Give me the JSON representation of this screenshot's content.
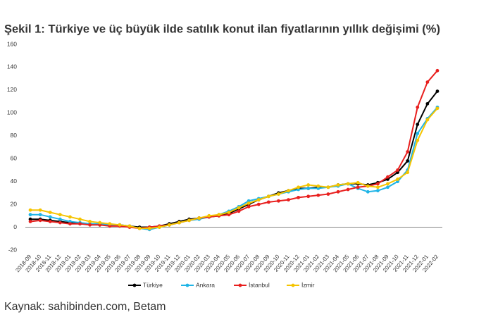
{
  "chart_data": {
    "type": "line",
    "title": "Şekil 1: Türkiye ve üç büyük ilde satılık konut ilan fiyatlarının yıllık değişimi (%)",
    "categories": [
      "2018-09",
      "2018-10",
      "2018-11",
      "2018-12",
      "2019-01",
      "2019-02",
      "2019-03",
      "2019-04",
      "2019-05",
      "2019-06",
      "2019-07",
      "2019-08",
      "2019-09",
      "2019-10",
      "2019-11",
      "2019-12",
      "2020-01",
      "2020-02",
      "2020-03",
      "2020-04",
      "2020-05",
      "2020-06",
      "2020-07",
      "2020-08",
      "2020-09",
      "2020-10",
      "2020-11",
      "2020-12",
      "2021-01",
      "2021-02",
      "2021-03",
      "2021-04",
      "2021-05",
      "2021-06",
      "2021-07",
      "2021-08",
      "2021-09",
      "2021-10",
      "2021-11",
      "2021-12",
      "2022-01",
      "2022-02"
    ],
    "series": [
      {
        "name": "Türkiye",
        "color": "#000000",
        "values": [
          7,
          7,
          6,
          5,
          4,
          3,
          3,
          2,
          2,
          2,
          1,
          0,
          0,
          1,
          3,
          5,
          7,
          8,
          9,
          10,
          12,
          16,
          20,
          24,
          27,
          30,
          32,
          34,
          34,
          35,
          35,
          37,
          38,
          38,
          37,
          39,
          42,
          48,
          58,
          90,
          108,
          119
        ]
      },
      {
        "name": "Ankara",
        "color": "#1fb4e6",
        "values": [
          11,
          11,
          9,
          7,
          5,
          4,
          3,
          3,
          2,
          2,
          1,
          -1,
          -2,
          0,
          2,
          4,
          6,
          7,
          9,
          11,
          14,
          18,
          23,
          25,
          27,
          29,
          31,
          33,
          34,
          34,
          35,
          36,
          38,
          34,
          31,
          32,
          35,
          40,
          50,
          82,
          95,
          105
        ]
      },
      {
        "name": "İstanbul",
        "color": "#e8201f",
        "values": [
          5,
          6,
          5,
          4,
          3,
          3,
          2,
          2,
          1,
          1,
          0,
          -1,
          0,
          1,
          2,
          4,
          6,
          8,
          9,
          10,
          11,
          14,
          18,
          20,
          22,
          23,
          24,
          26,
          27,
          28,
          29,
          31,
          33,
          35,
          36,
          38,
          44,
          50,
          66,
          105,
          127,
          137
        ]
      },
      {
        "name": "İzmir",
        "color": "#f5c400",
        "values": [
          15,
          15,
          13,
          11,
          9,
          7,
          5,
          4,
          3,
          2,
          1,
          -1,
          -1,
          0,
          2,
          4,
          6,
          8,
          10,
          11,
          13,
          17,
          21,
          24,
          27,
          29,
          32,
          35,
          37,
          36,
          35,
          37,
          38,
          39,
          36,
          35,
          38,
          42,
          48,
          76,
          94,
          104
        ]
      }
    ],
    "ylim": [
      -20,
      160
    ],
    "yticks": [
      -20,
      0,
      20,
      40,
      60,
      80,
      100,
      120,
      140,
      160
    ],
    "legend": "bottom"
  },
  "source": "Kaynak: sahibinden.com, Betam"
}
